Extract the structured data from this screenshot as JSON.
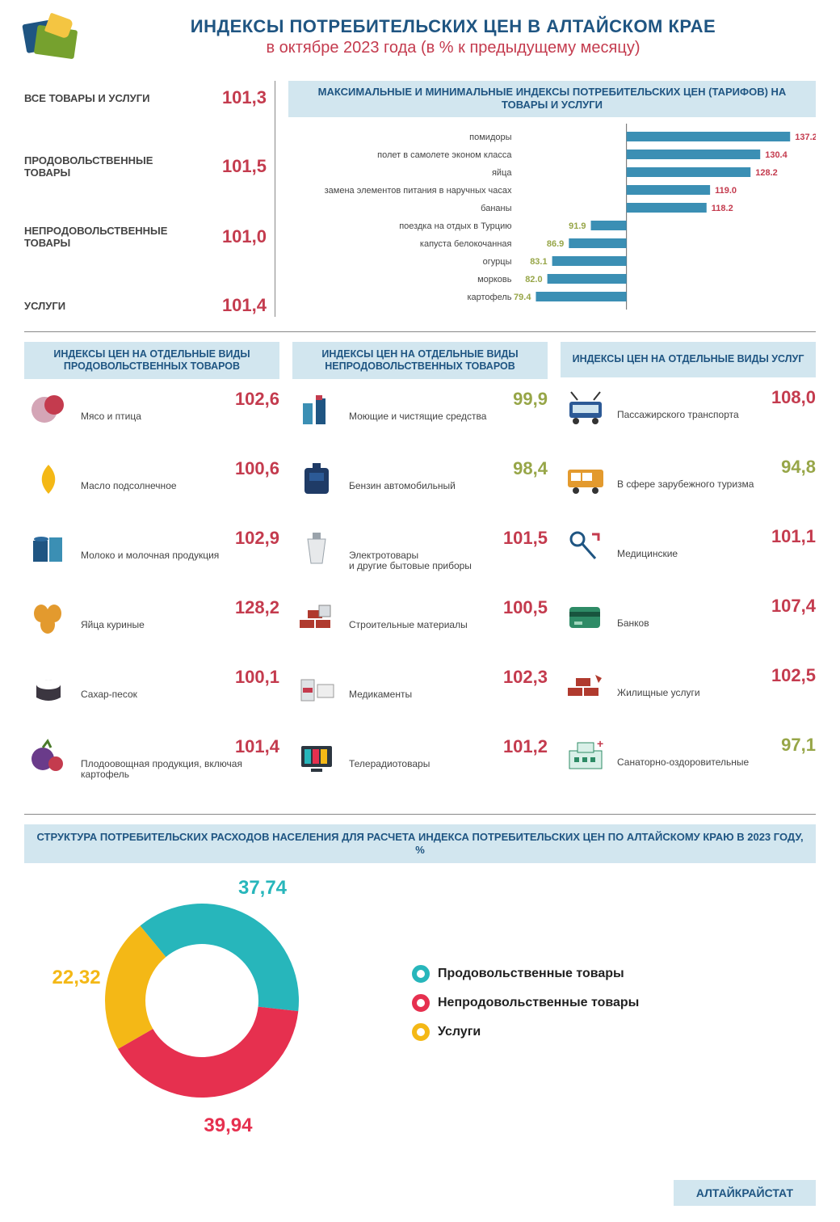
{
  "colors": {
    "blue": "#1f5582",
    "headerBg": "#d2e6ef",
    "red": "#c43b4e",
    "olive": "#97a648",
    "teal": "#27b6bb",
    "pink": "#e6304f",
    "amber": "#f4b816",
    "barFill": "#3b8fb4"
  },
  "header": {
    "title": "ИНДЕКСЫ ПОТРЕБИТЕЛЬСКИХ ЦЕН  В  АЛТАЙСКОМ КРАЕ",
    "subtitle": "в октябре 2023 года (в % к предыдущему месяцу)"
  },
  "summary": [
    {
      "label": "ВСЕ ТОВАРЫ И УСЛУГИ",
      "value": "101,3"
    },
    {
      "label": "ПРОДОВОЛЬСТВЕННЫЕ ТОВАРЫ",
      "value": "101,5"
    },
    {
      "label": "НЕПРОДОВОЛЬСТВЕННЫЕ ТОВАРЫ",
      "value": "101,0"
    },
    {
      "label": "УСЛУГИ",
      "value": "101,4"
    }
  ],
  "hbar": {
    "title": "МАКСИМАЛЬНЫЕ И МИНИМАЛЬНЫЕ ИНДЕКСЫ ПОТРЕБИТЕЛЬСКИХ ЦЕН (ТАРИФОВ) НА ТОВАРЫ И УСЛУГИ",
    "baseline": 100,
    "xmin": 75,
    "xmax": 140,
    "rows_up": [
      {
        "label": "помидоры",
        "value": 137.2,
        "text": "137.2"
      },
      {
        "label": "полет в самолете эконом класса",
        "value": 130.4,
        "text": "130.4"
      },
      {
        "label": "яйца",
        "value": 128.2,
        "text": "128.2"
      },
      {
        "label": "замена элементов питания в наручных часах",
        "value": 119.0,
        "text": "119.0"
      },
      {
        "label": "бананы",
        "value": 118.2,
        "text": "118.2"
      }
    ],
    "rows_down": [
      {
        "label": "поездка на отдых в Турцию",
        "value": 91.9,
        "text": "91.9"
      },
      {
        "label": "капуста белокочанная",
        "value": 86.9,
        "text": "86.9"
      },
      {
        "label": "огурцы",
        "value": 83.1,
        "text": "83.1"
      },
      {
        "label": "морковь",
        "value": 82.0,
        "text": "82.0"
      },
      {
        "label": "картофель",
        "value": 79.4,
        "text": "79.4"
      }
    ]
  },
  "columns": {
    "food": {
      "title": "ИНДЕКСЫ ЦЕН НА ОТДЕЛЬНЫЕ ВИДЫ ПРОДОВОЛЬСТВЕННЫХ ТОВАРОВ",
      "items": [
        {
          "label": "Мясо и птица",
          "value": "102,6",
          "color": "red",
          "icon": "meat"
        },
        {
          "label": "Масло подсолнечное",
          "value": "100,6",
          "color": "red",
          "icon": "oil"
        },
        {
          "label": "Молоко и молочная продукция",
          "value": "102,9",
          "color": "red",
          "icon": "milk"
        },
        {
          "label": "Яйца куриные",
          "value": "128,2",
          "color": "red",
          "icon": "eggs"
        },
        {
          "label": "Сахар-песок",
          "value": "100,1",
          "color": "red",
          "icon": "sugar"
        },
        {
          "label": "Плодоовощная продукция, включая картофель",
          "value": "101,4",
          "color": "red",
          "icon": "veg"
        }
      ]
    },
    "nonfood": {
      "title": "ИНДЕКСЫ ЦЕН НА ОТДЕЛЬНЫЕ ВИДЫ НЕПРОДОВОЛЬСТВЕННЫХ ТОВАРОВ",
      "items": [
        {
          "label": "Моющие и чистящие средства",
          "value": "99,9",
          "color": "olive",
          "icon": "cleaning"
        },
        {
          "label": "Бензин автомобильный",
          "value": "98,4",
          "color": "olive",
          "icon": "fuel"
        },
        {
          "label": "Электротовары\nи другие бытовые приборы",
          "value": "101,5",
          "color": "red",
          "icon": "kettle"
        },
        {
          "label": "Строительные материалы",
          "value": "100,5",
          "color": "red",
          "icon": "bricks"
        },
        {
          "label": "Медикаменты",
          "value": "102,3",
          "color": "red",
          "icon": "meds"
        },
        {
          "label": "Телерадиотовары",
          "value": "101,2",
          "color": "red",
          "icon": "tv"
        }
      ]
    },
    "services": {
      "title": "ИНДЕКСЫ ЦЕН НА ОТДЕЛЬНЫЕ ВИДЫ УСЛУГ",
      "items": [
        {
          "label": "Пассажирского транспорта",
          "value": "108,0",
          "color": "red",
          "icon": "trolley"
        },
        {
          "label": "В сфере зарубежного туризма",
          "value": "94,8",
          "color": "olive",
          "icon": "bus"
        },
        {
          "label": "Медицинские",
          "value": "101,1",
          "color": "red",
          "icon": "medical"
        },
        {
          "label": "Банков",
          "value": "107,4",
          "color": "red",
          "icon": "bank"
        },
        {
          "label": "Жилищные услуги",
          "value": "102,5",
          "color": "red",
          "icon": "housing"
        },
        {
          "label": "Санаторно-оздоровительные",
          "value": "97,1",
          "color": "olive",
          "icon": "sanatorium"
        }
      ]
    }
  },
  "donut": {
    "title": "СТРУКТУРА ПОТРЕБИТЕЛЬСКИХ РАСХОДОВ НАСЕЛЕНИЯ ДЛЯ РАСЧЕТА ИНДЕКСА ПОТРЕБИТЕЛЬСКИХ ЦЕН ПО АЛТАЙСКОМУ КРАЮ В 2023 ГОДУ, %",
    "slices": [
      {
        "label": "Продовольственные товары",
        "value": 37.74,
        "text": "37,74",
        "color": "#27b6bb"
      },
      {
        "label": "Непродовольственные товары",
        "value": 39.94,
        "text": "39,94",
        "color": "#e6304f"
      },
      {
        "label": "Услуги",
        "value": 22.32,
        "text": "22,32",
        "color": "#f4b816"
      }
    ],
    "innerRadius": 70,
    "outerRadius": 120
  },
  "footer": "АЛТАЙКРАЙСТАТ"
}
